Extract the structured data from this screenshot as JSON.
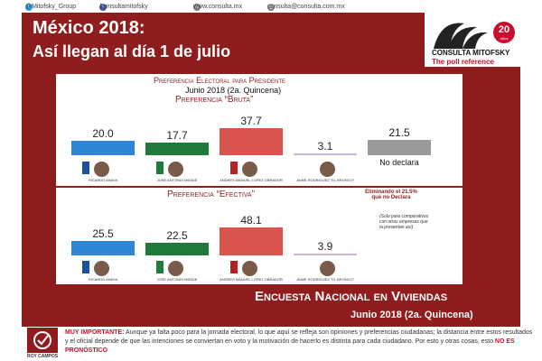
{
  "social": {
    "twitter": "@Mitofsky_Group",
    "facebook": "/consultamitofsky",
    "website": "www.consulta.mx",
    "email": "consulta@consulta.com.mx"
  },
  "headline": {
    "line1": "México 2018:",
    "line2": "Así llegan al día 1 de julio"
  },
  "logo": {
    "badge": "20",
    "badge_sub": "años",
    "name": "CONSULTA MITOFSKY",
    "tagline": "The poll reference"
  },
  "panel": {
    "title": "Preferencia Electoral para Presidente",
    "period": "Junio 2018 (2a. Quincena)",
    "gross_label": "Preferencia “Bruta”",
    "effective_label": "Preferencia “Efectiva”",
    "eliminating_note": "Eliminando el 21.5% que no Declara",
    "comparative_note": "(Solo para comparativos con otras empresas que la presentan así)"
  },
  "chart_data": [
    {
      "type": "bar",
      "title": "Preferencia “Bruta”",
      "categories": [
        "Ricardo Anaya",
        "José Antonio Meade",
        "Andrés Manuel López Obrador",
        "Jaime Rodríguez “El Bronco”",
        "No declara"
      ],
      "values": [
        20.0,
        17.7,
        37.7,
        3.1,
        21.5
      ],
      "value_labels": [
        "20.0",
        "17.7",
        "37.7",
        "3.1",
        "21.5"
      ],
      "colors": [
        "#2f86d6",
        "#1f7a3c",
        "#d9534f",
        "#c9b6d6",
        "#9a9a9a"
      ],
      "ylim": [
        0,
        40
      ]
    },
    {
      "type": "bar",
      "title": "Preferencia “Efectiva”",
      "categories": [
        "Ricardo Anaya",
        "José Antonio Meade",
        "Andrés Manuel López Obrador",
        "Jaime Rodríguez “El Bronco”"
      ],
      "values": [
        25.5,
        22.5,
        48.1,
        3.9
      ],
      "value_labels": [
        "25.5",
        "22.5",
        "48.1",
        "3.9"
      ],
      "colors": [
        "#2f86d6",
        "#1f7a3c",
        "#d9534f",
        "#c9b6d6"
      ],
      "ylim": [
        0,
        50
      ]
    }
  ],
  "candidates": [
    {
      "name": "RICARDO ANAYA"
    },
    {
      "name": "JOSE ANTONIO MEADE"
    },
    {
      "name": "ANDRES MANUEL LOPEZ OBRADOR"
    },
    {
      "name": "JAIME RODRIGUEZ \"EL BRONCO\""
    }
  ],
  "no_declara_label": "No declara",
  "survey": {
    "title": "Encuesta Nacional en Viviendas",
    "period": "Junio 2018 (2a. Quincena)"
  },
  "footer": {
    "important_label": "MUY IMPORTANTE:",
    "text_a": "Aunque ya falta poco para la jornada electoral, lo que aquí se refleja son opiniones y preferencias ciudadanas;",
    "text_b": "la distancia entre estos resultados y el oficial depende de que las intenciones se conviertan en voto y la motivación",
    "text_c": "de hacerlo es distinta para cada ciudadano. Por esto y otras cosas, esto",
    "emphasis": "NO ES PRONÓSTICO",
    "author": "ROY CAMPOS"
  },
  "colors": {
    "maroon": "#8f1d1d",
    "panel_text": "#8f1d1d",
    "logo_red": "#c8102e"
  }
}
